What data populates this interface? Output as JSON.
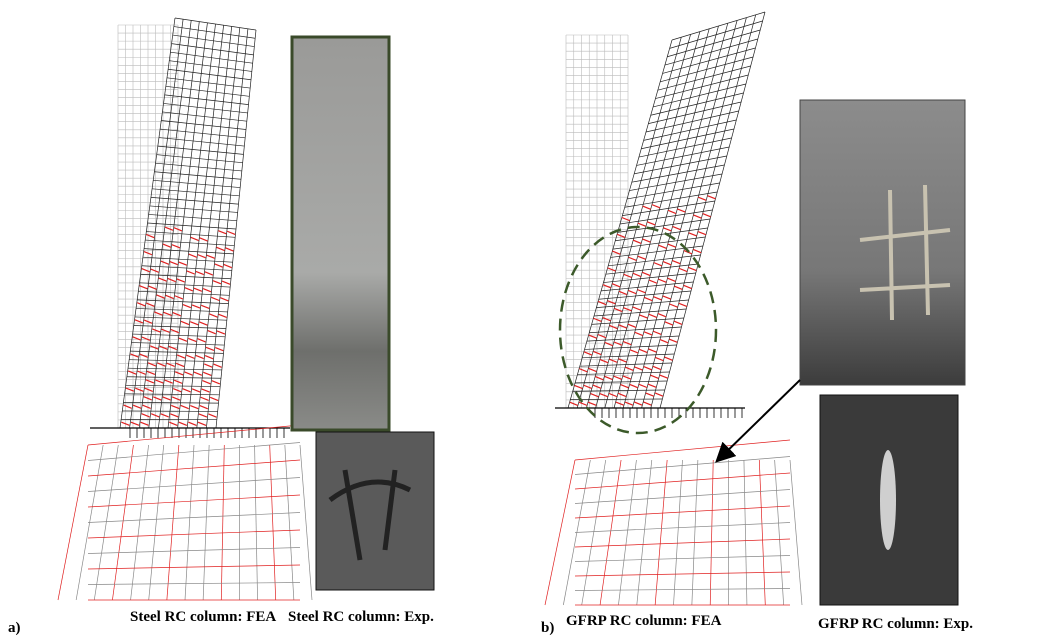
{
  "panels": [
    {
      "label": "a)",
      "captions": [
        "Steel RC column: FEA",
        "Steel RC column: Exp."
      ]
    },
    {
      "label": "b)",
      "captions": [
        "GFRP RC column: FEA",
        "GFRP RC column: Exp."
      ]
    }
  ]
}
